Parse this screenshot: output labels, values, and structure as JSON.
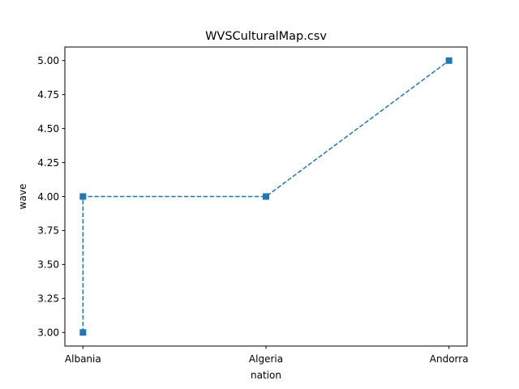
{
  "chart_data": {
    "type": "line",
    "title": "WVSCulturalMap.csv",
    "xlabel": "nation",
    "ylabel": "wave",
    "x": [
      "Albania",
      "Albania",
      "Algeria",
      "Andorra"
    ],
    "categories": [
      "Albania",
      "Algeria",
      "Andorra"
    ],
    "series": [
      {
        "values": [
          3.0,
          4.0,
          4.0,
          5.0
        ]
      }
    ],
    "ylim": [
      2.9,
      5.1
    ],
    "yticks": [
      "3.00",
      "3.25",
      "3.50",
      "3.75",
      "4.00",
      "4.25",
      "4.50",
      "4.75",
      "5.00"
    ],
    "line_style": "dashed",
    "marker": "square",
    "color": "#1f77b4",
    "grid": false,
    "legend": "none"
  }
}
